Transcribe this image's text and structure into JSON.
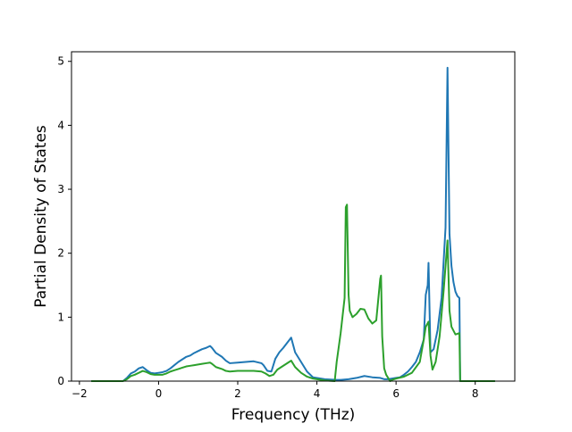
{
  "chart_data": {
    "type": "line",
    "title": "",
    "xlabel": "Frequency (THz)",
    "ylabel": "Partial Density of States",
    "xlim": [
      -2.2,
      9.0
    ],
    "ylim": [
      0,
      5.15
    ],
    "xticks": [
      -2,
      0,
      2,
      4,
      6,
      8
    ],
    "xtick_labels": [
      "−2",
      "0",
      "2",
      "4",
      "6",
      "8"
    ],
    "yticks": [
      0,
      1,
      2,
      3,
      4,
      5
    ],
    "ytick_labels": [
      "0",
      "1",
      "2",
      "3",
      "4",
      "5"
    ],
    "grid": false,
    "legend": "none",
    "series": [
      {
        "color": "#1f77b4",
        "x": [
          -1.7,
          -0.9,
          -0.8,
          -0.7,
          -0.6,
          -0.5,
          -0.4,
          -0.3,
          -0.2,
          -0.1,
          0.0,
          0.1,
          0.2,
          0.3,
          0.4,
          0.5,
          0.6,
          0.7,
          0.8,
          0.9,
          1.0,
          1.1,
          1.2,
          1.3,
          1.35,
          1.45,
          1.6,
          1.7,
          1.8,
          2.0,
          2.2,
          2.4,
          2.6,
          2.65,
          2.75,
          2.85,
          2.95,
          3.05,
          3.15,
          3.25,
          3.35,
          3.45,
          3.6,
          3.75,
          3.9,
          4.2,
          4.5,
          4.6,
          4.8,
          5.0,
          5.2,
          5.4,
          5.6,
          5.7,
          5.8,
          5.9,
          6.0,
          6.1,
          6.2,
          6.3,
          6.4,
          6.5,
          6.6,
          6.7,
          6.75,
          6.8,
          6.82,
          6.87,
          6.95,
          7.05,
          7.15,
          7.25,
          7.3,
          7.35,
          7.4,
          7.45,
          7.5,
          7.55,
          7.6,
          7.62,
          7.7,
          8.0,
          8.5
        ],
        "y": [
          0.0,
          0.0,
          0.05,
          0.12,
          0.15,
          0.2,
          0.22,
          0.17,
          0.13,
          0.12,
          0.13,
          0.14,
          0.16,
          0.2,
          0.25,
          0.3,
          0.34,
          0.38,
          0.4,
          0.44,
          0.47,
          0.5,
          0.52,
          0.55,
          0.52,
          0.44,
          0.38,
          0.32,
          0.28,
          0.29,
          0.3,
          0.31,
          0.28,
          0.25,
          0.16,
          0.15,
          0.35,
          0.45,
          0.52,
          0.6,
          0.68,
          0.45,
          0.3,
          0.15,
          0.06,
          0.03,
          0.02,
          0.02,
          0.03,
          0.05,
          0.08,
          0.06,
          0.05,
          0.03,
          0.03,
          0.04,
          0.05,
          0.06,
          0.1,
          0.15,
          0.22,
          0.3,
          0.45,
          0.65,
          1.35,
          1.5,
          1.85,
          0.45,
          0.5,
          0.8,
          1.3,
          2.4,
          4.9,
          2.3,
          1.8,
          1.55,
          1.4,
          1.33,
          1.3,
          0.0,
          0.0,
          0.0,
          0.0
        ]
      },
      {
        "color": "#2ca02c",
        "x": [
          -1.7,
          -0.9,
          -0.8,
          -0.7,
          -0.6,
          -0.5,
          -0.4,
          -0.3,
          -0.2,
          -0.1,
          0.0,
          0.1,
          0.2,
          0.3,
          0.4,
          0.5,
          0.6,
          0.7,
          0.8,
          0.9,
          1.0,
          1.1,
          1.2,
          1.3,
          1.35,
          1.45,
          1.6,
          1.7,
          1.8,
          2.0,
          2.2,
          2.4,
          2.6,
          2.7,
          2.8,
          2.9,
          3.0,
          3.1,
          3.2,
          3.3,
          3.35,
          3.45,
          3.6,
          3.75,
          3.9,
          4.2,
          4.45,
          4.5,
          4.6,
          4.7,
          4.73,
          4.76,
          4.8,
          4.83,
          4.9,
          5.0,
          5.1,
          5.2,
          5.3,
          5.4,
          5.5,
          5.6,
          5.62,
          5.65,
          5.7,
          5.75,
          5.85,
          5.9,
          6.0,
          6.2,
          6.4,
          6.6,
          6.7,
          6.75,
          6.82,
          6.87,
          6.92,
          7.0,
          7.1,
          7.2,
          7.3,
          7.35,
          7.4,
          7.5,
          7.6,
          7.62,
          7.7,
          8.0,
          8.5
        ],
        "y": [
          0.0,
          0.0,
          0.03,
          0.08,
          0.1,
          0.13,
          0.16,
          0.14,
          0.11,
          0.1,
          0.1,
          0.1,
          0.12,
          0.15,
          0.17,
          0.19,
          0.21,
          0.23,
          0.24,
          0.25,
          0.26,
          0.27,
          0.28,
          0.29,
          0.27,
          0.22,
          0.19,
          0.16,
          0.15,
          0.16,
          0.16,
          0.16,
          0.15,
          0.12,
          0.08,
          0.1,
          0.18,
          0.22,
          0.26,
          0.3,
          0.32,
          0.22,
          0.13,
          0.07,
          0.04,
          0.01,
          0.0,
          0.3,
          0.75,
          1.3,
          2.72,
          2.76,
          1.35,
          1.1,
          1.0,
          1.05,
          1.13,
          1.12,
          0.98,
          0.9,
          0.95,
          1.6,
          1.65,
          0.7,
          0.2,
          0.1,
          0.0,
          0.02,
          0.04,
          0.07,
          0.13,
          0.3,
          0.65,
          0.85,
          0.93,
          0.4,
          0.18,
          0.3,
          0.7,
          1.4,
          2.2,
          1.1,
          0.85,
          0.73,
          0.75,
          0.0,
          0.0,
          0.0,
          0.0
        ]
      }
    ]
  }
}
